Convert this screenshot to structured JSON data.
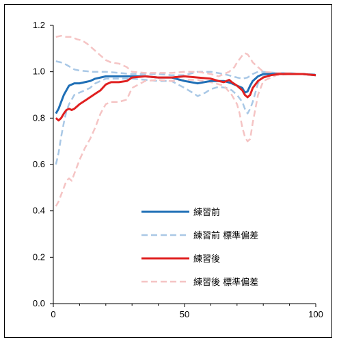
{
  "chart_data": {
    "type": "line",
    "xlim": [
      0,
      100
    ],
    "ylim": [
      0.0,
      1.2
    ],
    "x_ticks": [
      "0",
      "50",
      "100"
    ],
    "y_ticks": [
      "0.0",
      "0.2",
      "0.4",
      "0.6",
      "0.8",
      "1.0",
      "1.2"
    ],
    "grid": false,
    "legend_position": "lower-center",
    "series": [
      {
        "name": "練習前",
        "color": "#1f6fb6",
        "dash": "solid",
        "x": [
          1,
          2,
          3,
          4,
          5,
          6,
          8,
          10,
          12,
          14,
          16,
          18,
          20,
          22,
          25,
          30,
          35,
          40,
          45,
          50,
          55,
          60,
          65,
          68,
          70,
          72,
          73,
          74,
          75,
          76,
          78,
          80,
          83,
          86,
          90,
          95,
          100
        ],
        "y": [
          0.82,
          0.84,
          0.87,
          0.9,
          0.92,
          0.94,
          0.95,
          0.95,
          0.955,
          0.96,
          0.97,
          0.975,
          0.98,
          0.98,
          0.98,
          0.98,
          0.98,
          0.975,
          0.975,
          0.96,
          0.95,
          0.96,
          0.96,
          0.95,
          0.94,
          0.93,
          0.91,
          0.915,
          0.94,
          0.96,
          0.98,
          0.99,
          0.99,
          0.99,
          0.99,
          0.99,
          0.985
        ]
      },
      {
        "name": "練習前 標準偏差",
        "color": "#a9c8e6",
        "dash": "dashed",
        "x": [
          1,
          2,
          3,
          4,
          5,
          6,
          7,
          8,
          10,
          12,
          14,
          16,
          18,
          20,
          25,
          30,
          35,
          40,
          45,
          50,
          53,
          55,
          58,
          60,
          63,
          66,
          68,
          70,
          72,
          73,
          74,
          75,
          76,
          78,
          80,
          85,
          90,
          95,
          100
        ],
        "y": [
          0.6,
          0.65,
          0.72,
          0.78,
          0.83,
          0.86,
          0.88,
          0.9,
          0.91,
          0.92,
          0.93,
          0.95,
          0.96,
          0.97,
          0.97,
          0.97,
          0.965,
          0.96,
          0.96,
          0.93,
          0.91,
          0.895,
          0.91,
          0.925,
          0.935,
          0.93,
          0.92,
          0.9,
          0.87,
          0.84,
          0.82,
          0.84,
          0.87,
          0.95,
          0.98,
          0.99,
          0.99,
          0.99,
          0.985
        ]
      },
      {
        "name": "",
        "color": "#a9c8e6",
        "dash": "dashed",
        "x": [
          1,
          3,
          5,
          8,
          10,
          15,
          20,
          30,
          40,
          45,
          50,
          55,
          60,
          65,
          70,
          72,
          74,
          76,
          78,
          80,
          85,
          90,
          95,
          100
        ],
        "y": [
          1.045,
          1.04,
          1.03,
          1.01,
          1.005,
          1.0,
          1.0,
          0.99,
          0.99,
          0.985,
          0.985,
          1.0,
          1.0,
          0.99,
          0.975,
          0.97,
          0.975,
          0.99,
          1.0,
          1.0,
          0.995,
          0.995,
          0.99,
          0.99
        ]
      },
      {
        "name": "練習後",
        "color": "#e02020",
        "dash": "solid",
        "x": [
          1,
          2,
          3,
          4,
          5,
          6,
          7,
          8,
          9,
          10,
          12,
          14,
          16,
          18,
          20,
          22,
          25,
          28,
          30,
          35,
          40,
          45,
          50,
          55,
          60,
          63,
          65,
          67,
          68,
          70,
          72,
          73,
          74,
          75,
          76,
          78,
          80,
          83,
          86,
          90,
          95,
          100
        ],
        "y": [
          0.8,
          0.79,
          0.8,
          0.82,
          0.835,
          0.84,
          0.835,
          0.84,
          0.85,
          0.86,
          0.875,
          0.89,
          0.905,
          0.92,
          0.945,
          0.955,
          0.955,
          0.96,
          0.975,
          0.98,
          0.975,
          0.975,
          0.98,
          0.975,
          0.97,
          0.96,
          0.955,
          0.965,
          0.955,
          0.94,
          0.92,
          0.9,
          0.89,
          0.9,
          0.93,
          0.96,
          0.975,
          0.985,
          0.99,
          0.99,
          0.99,
          0.985
        ]
      },
      {
        "name": "練習後 標準偏差",
        "color": "#f5c4c4",
        "dash": "dashed",
        "x": [
          1,
          2,
          3,
          4,
          5,
          6,
          7,
          8,
          10,
          12,
          14,
          16,
          18,
          20,
          22,
          25,
          28,
          30,
          35,
          40,
          45,
          50,
          55,
          60,
          65,
          68,
          70,
          71,
          72,
          73,
          74,
          75,
          76,
          78,
          80,
          85,
          90,
          95,
          100
        ],
        "y": [
          0.42,
          0.44,
          0.47,
          0.5,
          0.53,
          0.54,
          0.53,
          0.56,
          0.62,
          0.67,
          0.71,
          0.76,
          0.82,
          0.86,
          0.87,
          0.87,
          0.88,
          0.93,
          0.96,
          0.965,
          0.96,
          0.965,
          0.965,
          0.955,
          0.94,
          0.9,
          0.86,
          0.82,
          0.76,
          0.72,
          0.7,
          0.71,
          0.78,
          0.9,
          0.96,
          0.985,
          0.99,
          0.99,
          0.985
        ]
      },
      {
        "name": "",
        "color": "#f5c4c4",
        "dash": "dashed",
        "x": [
          1,
          3,
          5,
          7,
          9,
          11,
          13,
          15,
          18,
          20,
          22,
          25,
          28,
          30,
          35,
          40,
          45,
          50,
          55,
          60,
          63,
          65,
          67,
          69,
          70,
          71,
          72,
          73,
          74,
          75,
          76,
          78,
          80,
          85,
          90,
          95,
          100
        ],
        "y": [
          1.15,
          1.155,
          1.15,
          1.15,
          1.14,
          1.135,
          1.12,
          1.1,
          1.07,
          1.05,
          1.04,
          1.035,
          1.02,
          1.0,
          0.995,
          0.995,
          0.995,
          1.0,
          1.0,
          0.99,
          0.98,
          0.99,
          1.0,
          1.02,
          1.04,
          1.055,
          1.07,
          1.08,
          1.075,
          1.06,
          1.04,
          1.02,
          1.0,
          0.995,
          0.995,
          0.99,
          0.985
        ]
      }
    ]
  }
}
